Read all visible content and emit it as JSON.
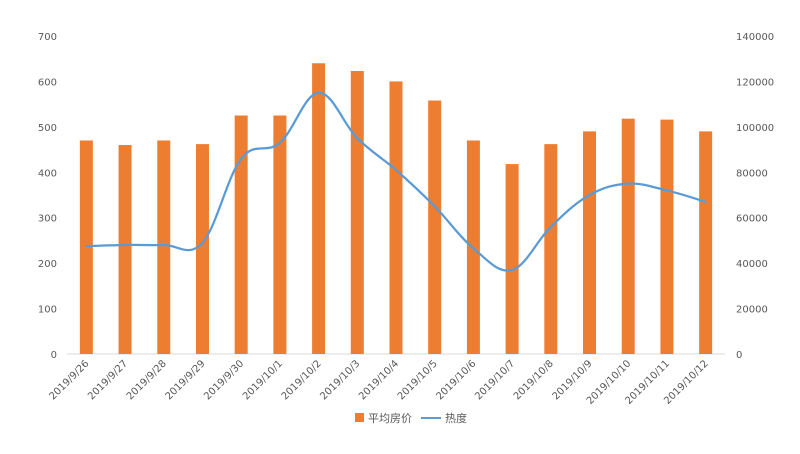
{
  "chart_data": {
    "type": "bar",
    "categories": [
      "2019/9/26",
      "2019/9/27",
      "2019/9/28",
      "2019/9/29",
      "2019/9/30",
      "2019/10/1",
      "2019/10/2",
      "2019/10/3",
      "2019/10/4",
      "2019/10/5",
      "2019/10/6",
      "2019/10/7",
      "2019/10/8",
      "2019/10/9",
      "2019/10/10",
      "2019/10/11",
      "2019/10/12"
    ],
    "series": [
      {
        "name": "平均房价",
        "type": "bar",
        "axis": "left",
        "color": "#ED7D31",
        "values": [
          470,
          460,
          470,
          462,
          525,
          525,
          640,
          623,
          600,
          558,
          470,
          418,
          462,
          490,
          518,
          516,
          490
        ]
      },
      {
        "name": "热度",
        "type": "line",
        "axis": "right",
        "color": "#5B9BD5",
        "smooth": true,
        "values": [
          47500,
          48000,
          48000,
          49000,
          86000,
          93000,
          115000,
          95000,
          81000,
          65000,
          46500,
          37000,
          56000,
          70000,
          75000,
          72000,
          67000
        ]
      }
    ],
    "y_left": {
      "min": 0,
      "max": 700,
      "step": 100,
      "ticks": [
        "0",
        "100",
        "200",
        "300",
        "400",
        "500",
        "600",
        "700"
      ]
    },
    "y_right": {
      "min": 0,
      "max": 140000,
      "step": 20000,
      "ticks": [
        "0",
        "20000",
        "40000",
        "60000",
        "80000",
        "100000",
        "120000",
        "140000"
      ]
    },
    "grid": false,
    "legend_position": "bottom"
  }
}
